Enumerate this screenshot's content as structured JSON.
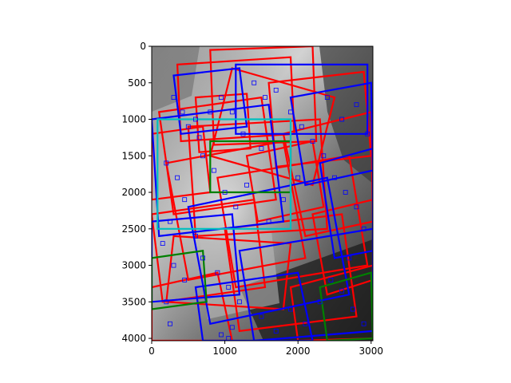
{
  "chart_data": {
    "type": "image",
    "title": "",
    "xlabel": "",
    "ylabel": "",
    "xlim": [
      0,
      3024
    ],
    "ylim": [
      4032,
      0
    ],
    "x_ticks": [
      0,
      1000,
      2000,
      3000
    ],
    "y_ticks": [
      0,
      500,
      1000,
      1500,
      2000,
      2500,
      3000,
      3500,
      4000
    ],
    "x_tick_labels": [
      "0",
      "1000",
      "2000",
      "3000"
    ],
    "y_tick_labels": [
      "0",
      "500",
      "1000",
      "1500",
      "2000",
      "2500",
      "3000",
      "3500",
      "4000"
    ],
    "background": "grayscale photograph",
    "overlay_colors": {
      "red": "#ff0000",
      "blue": "#0000ff",
      "green": "#008000",
      "cyan": "#00bfbf"
    },
    "boxes": [
      {
        "color": "red",
        "corners": [
          [
            800,
            50
          ],
          [
            2200,
            0
          ],
          [
            2250,
            1300
          ],
          [
            850,
            1350
          ]
        ]
      },
      {
        "color": "red",
        "corners": [
          [
            350,
            250
          ],
          [
            1900,
            150
          ],
          [
            1950,
            1200
          ],
          [
            400,
            1300
          ]
        ]
      },
      {
        "color": "red",
        "corners": [
          [
            1100,
            300
          ],
          [
            2500,
            700
          ],
          [
            2200,
            1900
          ],
          [
            800,
            1500
          ]
        ]
      },
      {
        "color": "red",
        "corners": [
          [
            100,
            900
          ],
          [
            1500,
            700
          ],
          [
            1700,
            2100
          ],
          [
            300,
            2300
          ]
        ]
      },
      {
        "color": "red",
        "corners": [
          [
            500,
            1100
          ],
          [
            2300,
            1000
          ],
          [
            2400,
            2500
          ],
          [
            600,
            2600
          ]
        ]
      },
      {
        "color": "red",
        "corners": [
          [
            200,
            1600
          ],
          [
            1800,
            1300
          ],
          [
            2100,
            2900
          ],
          [
            500,
            3200
          ]
        ]
      },
      {
        "color": "red",
        "corners": [
          [
            900,
            1800
          ],
          [
            2700,
            1500
          ],
          [
            2950,
            3000
          ],
          [
            1150,
            3300
          ]
        ]
      },
      {
        "color": "red",
        "corners": [
          [
            0,
            2300
          ],
          [
            1400,
            2100
          ],
          [
            1550,
            3300
          ],
          [
            150,
            3500
          ]
        ]
      },
      {
        "color": "red",
        "corners": [
          [
            1800,
            1200
          ],
          [
            3000,
            900
          ],
          [
            3024,
            2400
          ],
          [
            2100,
            2600
          ]
        ]
      },
      {
        "color": "red",
        "corners": [
          [
            1000,
            2500
          ],
          [
            2600,
            2300
          ],
          [
            2800,
            3700
          ],
          [
            1200,
            3900
          ]
        ]
      },
      {
        "color": "red",
        "corners": [
          [
            0,
            3300
          ],
          [
            900,
            3100
          ],
          [
            1100,
            4032
          ],
          [
            0,
            4032
          ]
        ]
      },
      {
        "color": "red",
        "corners": [
          [
            1600,
            500
          ],
          [
            2900,
            350
          ],
          [
            3000,
            1500
          ],
          [
            1700,
            1650
          ]
        ]
      },
      {
        "color": "red",
        "corners": [
          [
            300,
            2600
          ],
          [
            1900,
            2700
          ],
          [
            1800,
            3600
          ],
          [
            200,
            3500
          ]
        ]
      },
      {
        "color": "red",
        "corners": [
          [
            2200,
            2300
          ],
          [
            3024,
            2100
          ],
          [
            3024,
            3200
          ],
          [
            2400,
            3400
          ]
        ]
      },
      {
        "color": "red",
        "corners": [
          [
            600,
            700
          ],
          [
            1300,
            650
          ],
          [
            1350,
            1400
          ],
          [
            650,
            1450
          ]
        ]
      },
      {
        "color": "red",
        "corners": [
          [
            1300,
            1500
          ],
          [
            2200,
            1300
          ],
          [
            2350,
            2200
          ],
          [
            1450,
            2400
          ]
        ]
      },
      {
        "color": "red",
        "corners": [
          [
            0,
            1200
          ],
          [
            700,
            1100
          ],
          [
            800,
            2000
          ],
          [
            0,
            2100
          ]
        ]
      },
      {
        "color": "red",
        "corners": [
          [
            1900,
            3300
          ],
          [
            3024,
            3000
          ],
          [
            3024,
            4000
          ],
          [
            2000,
            4032
          ]
        ]
      },
      {
        "color": "blue",
        "corners": [
          [
            1150,
            250
          ],
          [
            2950,
            250
          ],
          [
            2950,
            1200
          ],
          [
            1150,
            1200
          ]
        ]
      },
      {
        "color": "blue",
        "corners": [
          [
            0,
            1000
          ],
          [
            1600,
            800
          ],
          [
            1800,
            2400
          ],
          [
            100,
            2600
          ]
        ]
      },
      {
        "color": "blue",
        "corners": [
          [
            500,
            2200
          ],
          [
            2400,
            1800
          ],
          [
            2700,
            3400
          ],
          [
            800,
            3800
          ]
        ]
      },
      {
        "color": "blue",
        "corners": [
          [
            1200,
            2800
          ],
          [
            3024,
            2500
          ],
          [
            3024,
            3900
          ],
          [
            1400,
            4032
          ]
        ]
      },
      {
        "color": "blue",
        "corners": [
          [
            0,
            2400
          ],
          [
            1100,
            2300
          ],
          [
            1200,
            3400
          ],
          [
            0,
            3500
          ]
        ]
      },
      {
        "color": "blue",
        "corners": [
          [
            1900,
            700
          ],
          [
            3000,
            500
          ],
          [
            3024,
            1700
          ],
          [
            2100,
            1900
          ]
        ]
      },
      {
        "color": "blue",
        "corners": [
          [
            600,
            3300
          ],
          [
            2000,
            3100
          ],
          [
            2200,
            4032
          ],
          [
            700,
            4032
          ]
        ]
      },
      {
        "color": "blue",
        "corners": [
          [
            2300,
            1600
          ],
          [
            3024,
            1400
          ],
          [
            3024,
            2800
          ],
          [
            2500,
            2900
          ]
        ]
      },
      {
        "color": "blue",
        "corners": [
          [
            300,
            400
          ],
          [
            1200,
            300
          ],
          [
            1300,
            1100
          ],
          [
            400,
            1200
          ]
        ]
      },
      {
        "color": "green",
        "corners": [
          [
            800,
            1300
          ],
          [
            1900,
            1300
          ],
          [
            1900,
            2000
          ],
          [
            800,
            2000
          ]
        ]
      },
      {
        "color": "green",
        "corners": [
          [
            2300,
            3300
          ],
          [
            3000,
            3100
          ],
          [
            3024,
            4000
          ],
          [
            2400,
            4032
          ]
        ]
      },
      {
        "color": "green",
        "corners": [
          [
            0,
            2900
          ],
          [
            700,
            2800
          ],
          [
            750,
            3500
          ],
          [
            0,
            3600
          ]
        ]
      },
      {
        "color": "cyan",
        "corners": [
          [
            80,
            1000
          ],
          [
            1900,
            1000
          ],
          [
            1900,
            2500
          ],
          [
            80,
            2500
          ]
        ]
      }
    ],
    "keypoints": [
      [
        300,
        700
      ],
      [
        420,
        900
      ],
      [
        500,
        1100
      ],
      [
        650,
        1250
      ],
      [
        200,
        1600
      ],
      [
        350,
        1800
      ],
      [
        450,
        2100
      ],
      [
        250,
        2400
      ],
      [
        150,
        2700
      ],
      [
        300,
        3000
      ],
      [
        450,
        3200
      ],
      [
        200,
        3500
      ],
      [
        250,
        3800
      ],
      [
        700,
        1500
      ],
      [
        850,
        1700
      ],
      [
        1000,
        2000
      ],
      [
        1150,
        2200
      ],
      [
        1300,
        1900
      ],
      [
        1400,
        500
      ],
      [
        1550,
        700
      ],
      [
        1700,
        600
      ],
      [
        1900,
        900
      ],
      [
        2050,
        1100
      ],
      [
        2200,
        1300
      ],
      [
        2350,
        1500
      ],
      [
        2500,
        1800
      ],
      [
        2650,
        2000
      ],
      [
        2800,
        2200
      ],
      [
        2900,
        2500
      ],
      [
        2700,
        2900
      ],
      [
        2450,
        3200
      ],
      [
        2300,
        3500
      ],
      [
        2100,
        3800
      ],
      [
        1900,
        3600
      ],
      [
        1700,
        3900
      ],
      [
        1500,
        3700
      ],
      [
        1200,
        3500
      ],
      [
        1050,
        3300
      ],
      [
        900,
        3100
      ],
      [
        700,
        2900
      ],
      [
        600,
        2600
      ],
      [
        1600,
        2400
      ],
      [
        1800,
        2100
      ],
      [
        2000,
        1800
      ],
      [
        1500,
        1400
      ],
      [
        1250,
        1200
      ],
      [
        1100,
        900
      ],
      [
        950,
        700
      ],
      [
        800,
        900
      ],
      [
        600,
        1000
      ],
      [
        2400,
        700
      ],
      [
        2600,
        1000
      ],
      [
        2800,
        800
      ],
      [
        2950,
        1200
      ],
      [
        1050,
        4000
      ],
      [
        1100,
        3850
      ],
      [
        950,
        3950
      ],
      [
        2600,
        3350
      ],
      [
        2750,
        3600
      ],
      [
        2900,
        3800
      ]
    ]
  }
}
